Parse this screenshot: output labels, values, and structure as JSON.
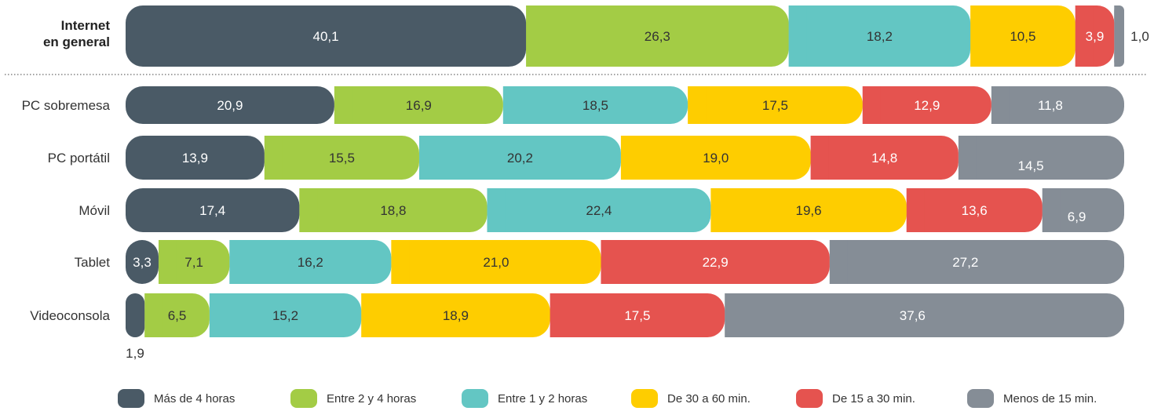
{
  "chart_data": {
    "type": "bar",
    "orientation": "horizontal",
    "stacked": true,
    "grid": false,
    "legend_position": "bottom",
    "categories": [
      "Internet en general",
      "PC sobremesa",
      "PC portátil",
      "Móvil",
      "Tablet",
      "Videoconsola"
    ],
    "highlighted_category": "Internet en general",
    "series": [
      {
        "name": "Más de 4 horas",
        "color": "#4a5a66",
        "label_color": "#ffffff",
        "values": [
          40.1,
          20.9,
          13.9,
          17.4,
          3.3,
          1.9
        ]
      },
      {
        "name": "Entre 2 y 4 horas",
        "color": "#a3cc45",
        "label_color": "#333333",
        "values": [
          26.3,
          16.9,
          15.5,
          18.8,
          7.1,
          6.5
        ]
      },
      {
        "name": "Entre 1 y 2 horas",
        "color": "#63c6c3",
        "label_color": "#333333",
        "values": [
          18.2,
          18.5,
          20.2,
          22.4,
          16.2,
          15.2
        ]
      },
      {
        "name": "De 30 a 60 min.",
        "color": "#fecd00",
        "label_color": "#333333",
        "values": [
          10.5,
          17.5,
          19.0,
          19.6,
          21.0,
          18.9
        ]
      },
      {
        "name": "De 15 a 30 min.",
        "color": "#e5534f",
        "label_color": "#ffffff",
        "values": [
          3.9,
          12.9,
          14.8,
          13.6,
          22.9,
          17.5
        ]
      },
      {
        "name": "Menos de 15 min.",
        "color": "#858d96",
        "label_color": "#ffffff",
        "values": [
          1.0,
          11.8,
          14.5,
          6.9,
          27.2,
          37.6
        ]
      }
    ],
    "value_labels": [
      [
        "40,1",
        "26,3",
        "18,2",
        "10,5",
        "3,9",
        "1,0"
      ],
      [
        "20,9",
        "16,9",
        "18,5",
        "17,5",
        "12,9",
        "11,8"
      ],
      [
        "13,9",
        "15,5",
        "20,2",
        "19,0",
        "14,8",
        "14,5"
      ],
      [
        "17,4",
        "18,8",
        "22,4",
        "19,6",
        "13,6",
        "6,9"
      ],
      [
        "3,3",
        "7,1",
        "16,2",
        "21,0",
        "22,9",
        "27,2"
      ],
      [
        "1,9",
        "6,5",
        "15,2",
        "18,9",
        "17,5",
        "37,6"
      ]
    ],
    "xlim": [
      0,
      100
    ],
    "title": "",
    "xlabel": "",
    "ylabel": ""
  }
}
